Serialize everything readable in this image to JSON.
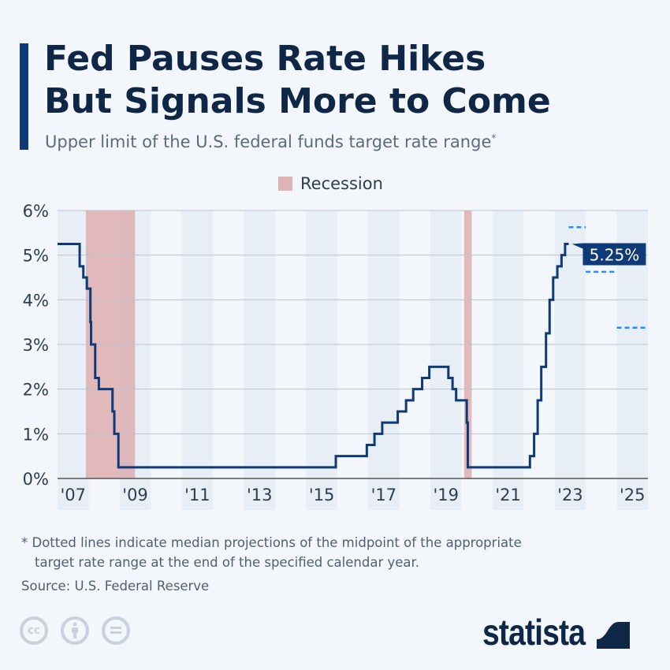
{
  "header": {
    "title_line1": "Fed Pauses Rate Hikes",
    "title_line2": "But Signals More to Come",
    "subtitle": "Upper limit of the U.S. federal funds target rate range",
    "subtitle_mark": "*"
  },
  "chart_data": {
    "type": "line",
    "step": true,
    "legend": [
      {
        "label": "Recession",
        "color": "#e0b4b4"
      }
    ],
    "legend_placement": "top-center",
    "ylim": [
      0,
      6
    ],
    "yticks": [
      "0%",
      "1%",
      "2%",
      "3%",
      "4%",
      "5%",
      "6%"
    ],
    "xlim": [
      "2007-01-01",
      "2026-01-01"
    ],
    "xticks": [
      "'07",
      "'09",
      "'11",
      "'13",
      "'15",
      "'17",
      "'19",
      "'21",
      "'23",
      "'25"
    ],
    "grid": true,
    "line_color": "#0e3a78",
    "series": [
      {
        "points": [
          [
            "2007-01-01",
            5.25
          ],
          [
            "2007-09-18",
            4.75
          ],
          [
            "2007-10-31",
            4.5
          ],
          [
            "2007-12-11",
            4.25
          ],
          [
            "2008-01-22",
            3.5
          ],
          [
            "2008-01-30",
            3.0
          ],
          [
            "2008-03-18",
            2.25
          ],
          [
            "2008-04-30",
            2.0
          ],
          [
            "2008-10-08",
            1.5
          ],
          [
            "2008-10-29",
            1.0
          ],
          [
            "2008-12-16",
            0.25
          ],
          [
            "2015-12-16",
            0.5
          ],
          [
            "2016-12-14",
            0.75
          ],
          [
            "2017-03-15",
            1.0
          ],
          [
            "2017-06-14",
            1.25
          ],
          [
            "2017-12-13",
            1.5
          ],
          [
            "2018-03-21",
            1.75
          ],
          [
            "2018-06-13",
            2.0
          ],
          [
            "2018-09-26",
            2.25
          ],
          [
            "2018-12-19",
            2.5
          ],
          [
            "2019-07-31",
            2.25
          ],
          [
            "2019-09-18",
            2.0
          ],
          [
            "2019-10-30",
            1.75
          ],
          [
            "2020-03-03",
            1.25
          ],
          [
            "2020-03-15",
            0.25
          ],
          [
            "2022-03-16",
            0.5
          ],
          [
            "2022-05-04",
            1.0
          ],
          [
            "2022-06-15",
            1.75
          ],
          [
            "2022-07-27",
            2.5
          ],
          [
            "2022-09-21",
            3.25
          ],
          [
            "2022-11-02",
            4.0
          ],
          [
            "2022-12-14",
            4.5
          ],
          [
            "2023-02-01",
            4.75
          ],
          [
            "2023-03-22",
            5.0
          ],
          [
            "2023-05-03",
            5.25
          ],
          [
            "2023-06-14",
            5.25
          ]
        ]
      }
    ],
    "projections": {
      "color": "#1e90ff",
      "points": [
        {
          "year": 2023,
          "value": 5.625
        },
        {
          "year": 2024,
          "value": 4.625
        },
        {
          "year": 2025,
          "value": 3.375
        }
      ]
    },
    "recessions": [
      [
        "2007-12-01",
        "2009-06-30"
      ],
      [
        "2020-02-01",
        "2020-04-30"
      ]
    ],
    "annotation": "5.25%",
    "annotation_color": "#0e3a78"
  },
  "footer": {
    "note_line1": "* Dotted lines indicate median projections of the midpoint of the appropriate",
    "note_line2": "target rate range at the end of the specified calendar year.",
    "source": "Source: U.S. Federal Reserve",
    "license_icons": [
      "cc-icon",
      "attribution-icon",
      "no-derivatives-icon"
    ],
    "brand": "statista"
  }
}
